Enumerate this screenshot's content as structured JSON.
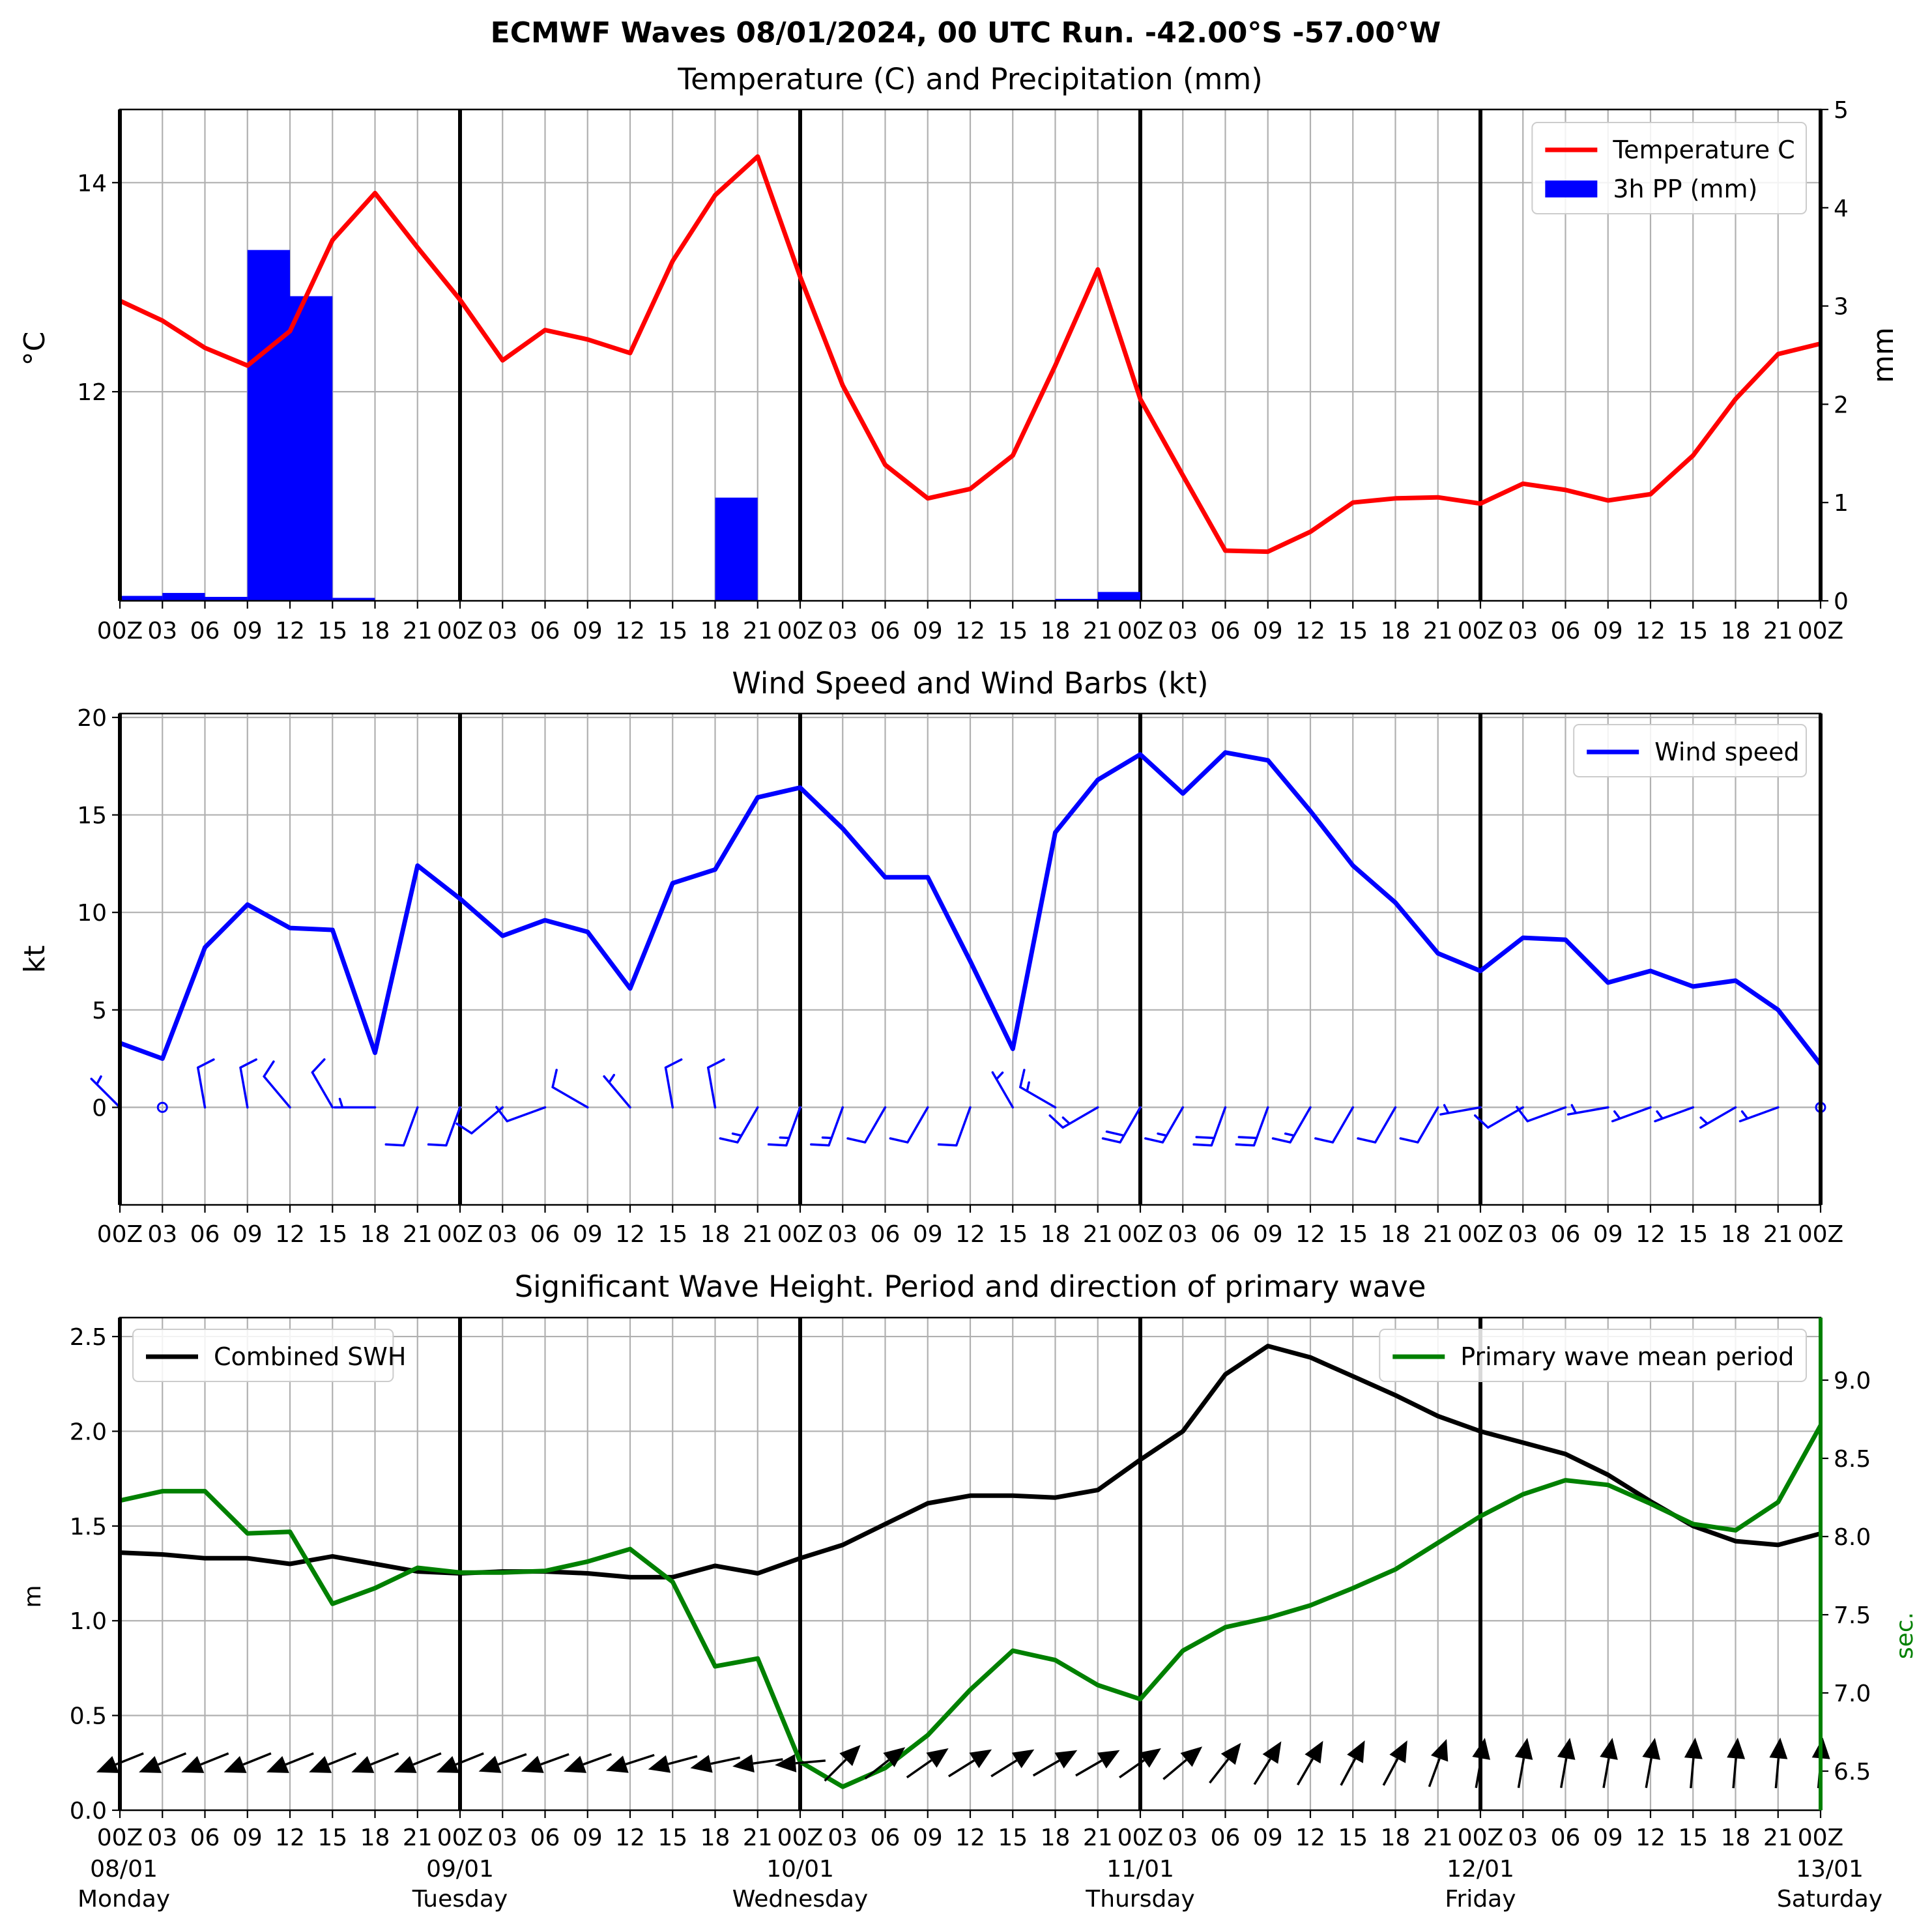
{
  "figure": {
    "title": "ECMWF Waves 08/01/2024, 00 UTC Run. -42.00°S -57.00°W"
  },
  "time_axis": {
    "tick_labels": [
      "00Z",
      "03",
      "06",
      "09",
      "12",
      "15",
      "18",
      "21",
      "00Z",
      "03",
      "06",
      "09",
      "12",
      "15",
      "18",
      "21",
      "00Z",
      "03",
      "06",
      "09",
      "12",
      "15",
      "18",
      "21",
      "00Z",
      "03",
      "06",
      "09",
      "12",
      "15",
      "18",
      "21",
      "00Z",
      "03",
      "06",
      "09",
      "12",
      "15",
      "18",
      "21",
      "00Z"
    ],
    "day_labels": [
      {
        "date": "08/01",
        "weekday": "Monday"
      },
      {
        "date": "09/01",
        "weekday": "Tuesday"
      },
      {
        "date": "10/01",
        "weekday": "Wednesday"
      },
      {
        "date": "11/01",
        "weekday": "Thursday"
      },
      {
        "date": "12/01",
        "weekday": "Friday"
      },
      {
        "date": "13/01",
        "weekday": "Saturday"
      }
    ]
  },
  "chart_data": [
    {
      "type": "line",
      "title": "Temperature (C) and Precipitation (mm)",
      "ylabel": "$^\\circ$C",
      "ylabel_display": "°C",
      "y2label": "mm",
      "ylim": [
        10,
        14.7
      ],
      "y2lim": [
        0,
        5
      ],
      "yticks": [
        12,
        14
      ],
      "y2ticks": [
        0,
        1,
        2,
        3,
        4,
        5
      ],
      "grid": true,
      "legend_position": "top-right",
      "x_hours": [
        0,
        3,
        6,
        9,
        12,
        15,
        18,
        21,
        24,
        27,
        30,
        33,
        36,
        39,
        42,
        45,
        48,
        51,
        54,
        57,
        60,
        63,
        66,
        69,
        72,
        75,
        78,
        81,
        84,
        87,
        90,
        93,
        96,
        99,
        102,
        105,
        108,
        111,
        114,
        117,
        120
      ],
      "series": [
        {
          "name": "Temperature C",
          "kind": "line",
          "axis": "left",
          "color": "#ff0000",
          "values": [
            12.87,
            12.68,
            12.42,
            12.25,
            12.58,
            13.45,
            13.9,
            13.38,
            12.88,
            12.3,
            12.59,
            12.5,
            12.37,
            13.25,
            13.88,
            14.25,
            13.1,
            12.06,
            11.3,
            10.98,
            11.07,
            11.39,
            12.25,
            13.17,
            11.93,
            11.2,
            10.48,
            10.47,
            10.66,
            10.94,
            10.98,
            10.99,
            10.93,
            11.12,
            11.06,
            10.96,
            11.02,
            11.39,
            11.93,
            12.36,
            12.46
          ]
        },
        {
          "name": "3h PP (mm)",
          "kind": "bar",
          "axis": "right",
          "color": "#0000ff",
          "values": [
            0.05,
            0.08,
            0.04,
            3.57,
            3.1,
            0.03,
            0,
            0,
            0,
            0,
            0,
            0,
            0,
            0,
            1.05,
            0,
            0,
            0,
            0,
            0,
            0,
            0,
            0.02,
            0.09,
            0,
            0,
            0,
            0,
            0,
            0,
            0,
            0,
            0,
            0,
            0,
            0,
            0,
            0,
            0,
            0
          ]
        }
      ]
    },
    {
      "type": "line",
      "title": "Wind Speed and Wind Barbs (kt)",
      "ylabel": "kt",
      "ylim": [
        -5,
        20.2
      ],
      "yticks": [
        0,
        5,
        10,
        15,
        20
      ],
      "grid": true,
      "legend_position": "top-right",
      "x_hours": [
        0,
        3,
        6,
        9,
        12,
        15,
        18,
        21,
        24,
        27,
        30,
        33,
        36,
        39,
        42,
        45,
        48,
        51,
        54,
        57,
        60,
        63,
        66,
        69,
        72,
        75,
        78,
        81,
        84,
        87,
        90,
        93,
        96,
        99,
        102,
        105,
        108,
        111,
        114,
        117,
        120
      ],
      "series": [
        {
          "name": "Wind speed",
          "color": "#0000ff",
          "values": [
            3.3,
            2.5,
            8.2,
            10.4,
            9.2,
            9.1,
            2.8,
            12.4,
            10.7,
            8.8,
            9.6,
            9.0,
            6.1,
            11.5,
            12.2,
            15.9,
            16.4,
            14.3,
            11.8,
            11.8,
            7.5,
            3.0,
            14.1,
            16.8,
            18.1,
            16.1,
            18.2,
            17.8,
            15.2,
            12.4,
            10.5,
            7.9,
            7.0,
            8.7,
            8.6,
            6.4,
            7.0,
            6.2,
            6.5,
            5.0,
            2.2
          ]
        }
      ],
      "barbs": {
        "baseline_y": 0,
        "color": "#0000ff",
        "direction_from_deg": [
          315,
          0,
          350,
          350,
          320,
          330,
          270,
          200,
          200,
          230,
          250,
          300,
          320,
          350,
          350,
          210,
          200,
          200,
          210,
          210,
          200,
          330,
          300,
          240,
          210,
          210,
          200,
          200,
          210,
          210,
          210,
          210,
          260,
          240,
          250,
          260,
          250,
          250,
          240,
          250,
          0
        ]
      }
    },
    {
      "type": "line",
      "title": "Significant Wave Height. Period and direction of primary wave",
      "ylabel": "m",
      "y2label": "sec.",
      "ylim": [
        0,
        2.6
      ],
      "y2lim": [
        6.25,
        9.4
      ],
      "yticks": [
        0.0,
        0.5,
        1.0,
        1.5,
        2.0,
        2.5
      ],
      "y2ticks": [
        6.5,
        7.0,
        7.5,
        8.0,
        8.5,
        9.0
      ],
      "grid": true,
      "x_hours": [
        0,
        3,
        6,
        9,
        12,
        15,
        18,
        21,
        24,
        27,
        30,
        33,
        36,
        39,
        42,
        45,
        48,
        51,
        54,
        57,
        60,
        63,
        66,
        69,
        72,
        75,
        78,
        81,
        84,
        87,
        90,
        93,
        96,
        99,
        102,
        105,
        108,
        111,
        114,
        117,
        120
      ],
      "series": [
        {
          "name": "Combined SWH",
          "axis": "left",
          "color": "#000000",
          "legend_position": "top-left",
          "values": [
            1.36,
            1.35,
            1.33,
            1.33,
            1.3,
            1.34,
            1.3,
            1.26,
            1.25,
            1.26,
            1.26,
            1.25,
            1.23,
            1.23,
            1.29,
            1.25,
            1.33,
            1.4,
            1.51,
            1.62,
            1.66,
            1.66,
            1.65,
            1.69,
            1.85,
            2.0,
            2.3,
            2.45,
            2.39,
            2.29,
            2.19,
            2.08,
            2.0,
            1.94,
            1.88,
            1.77,
            1.63,
            1.5,
            1.42,
            1.4,
            1.46
          ]
        },
        {
          "name": "Primary wave mean period",
          "axis": "right",
          "color": "#008000",
          "legend_position": "top-right",
          "values": [
            8.23,
            8.29,
            8.29,
            8.02,
            8.03,
            7.57,
            7.67,
            7.8,
            7.77,
            7.77,
            7.78,
            7.84,
            7.92,
            7.71,
            7.17,
            7.22,
            6.56,
            6.4,
            6.52,
            6.73,
            7.02,
            7.27,
            7.21,
            7.05,
            6.96,
            7.27,
            7.42,
            7.48,
            7.56,
            7.67,
            7.79,
            7.96,
            8.13,
            8.27,
            8.36,
            8.33,
            8.21,
            8.08,
            8.04,
            8.22,
            8.71
          ]
        }
      ],
      "wave_direction_arrows": {
        "baseline_m": 0.25,
        "color": "#000000",
        "direction_to_deg": [
          248,
          248,
          248,
          248,
          248,
          248,
          248,
          248,
          248,
          250,
          250,
          250,
          252,
          255,
          258,
          262,
          265,
          45,
          52,
          55,
          58,
          58,
          60,
          60,
          55,
          50,
          38,
          32,
          30,
          28,
          28,
          20,
          10,
          10,
          10,
          10,
          10,
          5,
          5,
          5,
          5
        ]
      }
    }
  ]
}
